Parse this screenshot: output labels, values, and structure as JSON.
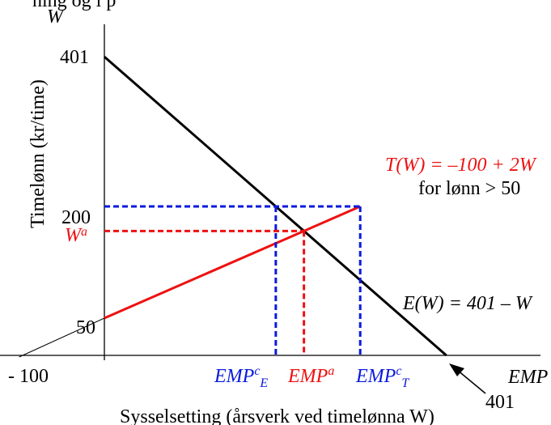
{
  "chart_data": {
    "type": "line",
    "top_cut_text": "ning og l p",
    "xlabel": "Sysselsetting (årsverk ved timelønna W)",
    "ylabel": "Timelønn (kr/time)",
    "x_axis_name": "EMP",
    "y_axis_name": "W",
    "xlim": [
      -100,
      401
    ],
    "ylim": [
      0,
      401
    ],
    "y_tick_labels": [
      "401",
      "200",
      "50"
    ],
    "x_tick_labels": [
      "- 100"
    ],
    "series": [
      {
        "label": "E(W) = 401 – W",
        "color": "#000000",
        "points": [
          [
            0,
            401
          ],
          [
            401,
            0
          ]
        ]
      },
      {
        "label": "T(W) = –100 + 2W",
        "sublabel": "for lønn > 50",
        "color": "#ee1111",
        "points": [
          [
            -100,
            0
          ],
          [
            0,
            50
          ],
          [
            300,
            200
          ]
        ]
      }
    ],
    "equilibrium": {
      "x_label": "EMP",
      "x_label_sup": "a",
      "y_label": "W",
      "y_label_sup": "a",
      "x": 234,
      "w": 167,
      "color": "#ee1111"
    },
    "control_wage": {
      "w": 200,
      "color": "#0a1adb"
    },
    "control_employment": [
      {
        "label": "EMP",
        "sup": "c",
        "sub": "E",
        "x": 201
      },
      {
        "label": "EMP",
        "sup": "c",
        "sub": "T",
        "x": 300
      }
    ],
    "arrow_label": "401",
    "colors": {
      "black": "#000000",
      "red": "#ee1111",
      "blue": "#0a1adb"
    }
  }
}
